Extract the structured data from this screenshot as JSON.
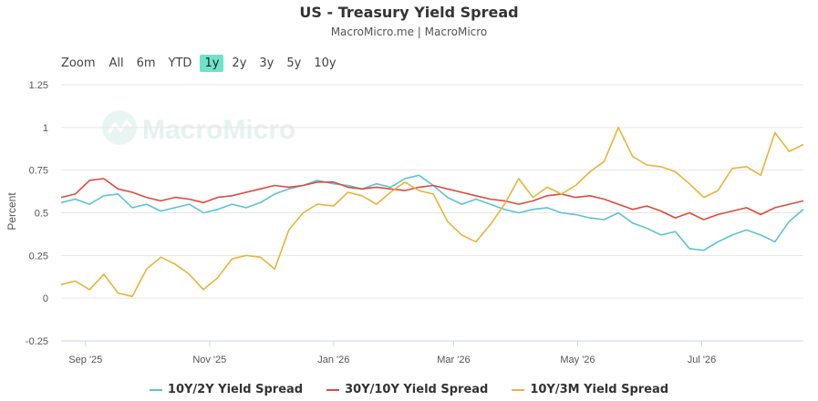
{
  "header": {
    "title": "US - Treasury Yield Spread",
    "subtitle": "MacroMicro.me | MacroMicro"
  },
  "range_selector": {
    "zoom_label": "Zoom",
    "buttons": [
      {
        "label": "All"
      },
      {
        "label": "6m"
      },
      {
        "label": "YTD"
      },
      {
        "label": "1y",
        "active": true
      },
      {
        "label": "2y"
      },
      {
        "label": "3y"
      },
      {
        "label": "5y"
      },
      {
        "label": "10y"
      }
    ],
    "active_color": "#6fe3c7"
  },
  "watermark": {
    "text": "MacroMicro"
  },
  "chart_data": {
    "type": "line",
    "ylabel": "Percent",
    "ylim": [
      -0.25,
      1.25
    ],
    "yticks": [
      "1.25",
      "1",
      "0.75",
      "0.5",
      "0.25",
      "0",
      "-0.25"
    ],
    "xlim": [
      "2025-08-20",
      "2026-08-20"
    ],
    "xticks": [
      {
        "label": "Sep '25",
        "date": "2025-09-01"
      },
      {
        "label": "Nov '25",
        "date": "2025-11-01"
      },
      {
        "label": "Jan '26",
        "date": "2026-01-01"
      },
      {
        "label": "Mar '26",
        "date": "2026-03-01"
      },
      {
        "label": "May '26",
        "date": "2026-05-01"
      },
      {
        "label": "Jul '26",
        "date": "2026-07-01"
      }
    ],
    "grid": true,
    "legend_position": "bottom",
    "series": [
      {
        "name": "10Y/2Y Yield Spread",
        "color": "#5bc4d1",
        "points": [
          [
            "2025-08-20",
            0.56
          ],
          [
            "2025-08-27",
            0.58
          ],
          [
            "2025-09-03",
            0.55
          ],
          [
            "2025-09-10",
            0.6
          ],
          [
            "2025-09-17",
            0.61
          ],
          [
            "2025-09-24",
            0.53
          ],
          [
            "2025-10-01",
            0.55
          ],
          [
            "2025-10-08",
            0.51
          ],
          [
            "2025-10-15",
            0.53
          ],
          [
            "2025-10-22",
            0.55
          ],
          [
            "2025-10-29",
            0.5
          ],
          [
            "2025-11-05",
            0.52
          ],
          [
            "2025-11-12",
            0.55
          ],
          [
            "2025-11-19",
            0.53
          ],
          [
            "2025-11-26",
            0.56
          ],
          [
            "2025-12-03",
            0.61
          ],
          [
            "2025-12-10",
            0.64
          ],
          [
            "2025-12-17",
            0.66
          ],
          [
            "2025-12-24",
            0.69
          ],
          [
            "2026-01-01",
            0.67
          ],
          [
            "2026-01-08",
            0.66
          ],
          [
            "2026-01-15",
            0.64
          ],
          [
            "2026-01-22",
            0.67
          ],
          [
            "2026-01-29",
            0.65
          ],
          [
            "2026-02-05",
            0.7
          ],
          [
            "2026-02-12",
            0.72
          ],
          [
            "2026-02-19",
            0.66
          ],
          [
            "2026-02-26",
            0.59
          ],
          [
            "2026-03-05",
            0.55
          ],
          [
            "2026-03-12",
            0.58
          ],
          [
            "2026-03-19",
            0.55
          ],
          [
            "2026-03-26",
            0.52
          ],
          [
            "2026-04-02",
            0.5
          ],
          [
            "2026-04-09",
            0.52
          ],
          [
            "2026-04-16",
            0.53
          ],
          [
            "2026-04-23",
            0.5
          ],
          [
            "2026-04-30",
            0.49
          ],
          [
            "2026-05-07",
            0.47
          ],
          [
            "2026-05-14",
            0.46
          ],
          [
            "2026-05-21",
            0.5
          ],
          [
            "2026-05-28",
            0.44
          ],
          [
            "2026-06-04",
            0.41
          ],
          [
            "2026-06-11",
            0.37
          ],
          [
            "2026-06-18",
            0.39
          ],
          [
            "2026-06-25",
            0.29
          ],
          [
            "2026-07-02",
            0.28
          ],
          [
            "2026-07-09",
            0.33
          ],
          [
            "2026-07-16",
            0.37
          ],
          [
            "2026-07-23",
            0.4
          ],
          [
            "2026-07-30",
            0.37
          ],
          [
            "2026-08-06",
            0.33
          ],
          [
            "2026-08-13",
            0.45
          ],
          [
            "2026-08-20",
            0.52
          ]
        ]
      },
      {
        "name": "30Y/10Y Yield Spread",
        "color": "#dd4b3c",
        "points": [
          [
            "2025-08-20",
            0.59
          ],
          [
            "2025-08-27",
            0.61
          ],
          [
            "2025-09-03",
            0.69
          ],
          [
            "2025-09-10",
            0.7
          ],
          [
            "2025-09-17",
            0.64
          ],
          [
            "2025-09-24",
            0.62
          ],
          [
            "2025-10-01",
            0.59
          ],
          [
            "2025-10-08",
            0.57
          ],
          [
            "2025-10-15",
            0.59
          ],
          [
            "2025-10-22",
            0.58
          ],
          [
            "2025-10-29",
            0.56
          ],
          [
            "2025-11-05",
            0.59
          ],
          [
            "2025-11-12",
            0.6
          ],
          [
            "2025-11-19",
            0.62
          ],
          [
            "2025-11-26",
            0.64
          ],
          [
            "2025-12-03",
            0.66
          ],
          [
            "2025-12-10",
            0.65
          ],
          [
            "2025-12-17",
            0.66
          ],
          [
            "2025-12-24",
            0.68
          ],
          [
            "2026-01-01",
            0.68
          ],
          [
            "2026-01-08",
            0.65
          ],
          [
            "2026-01-15",
            0.64
          ],
          [
            "2026-01-22",
            0.65
          ],
          [
            "2026-01-29",
            0.64
          ],
          [
            "2026-02-05",
            0.63
          ],
          [
            "2026-02-12",
            0.65
          ],
          [
            "2026-02-19",
            0.66
          ],
          [
            "2026-02-26",
            0.64
          ],
          [
            "2026-03-05",
            0.62
          ],
          [
            "2026-03-12",
            0.6
          ],
          [
            "2026-03-19",
            0.58
          ],
          [
            "2026-03-26",
            0.57
          ],
          [
            "2026-04-02",
            0.55
          ],
          [
            "2026-04-09",
            0.57
          ],
          [
            "2026-04-16",
            0.6
          ],
          [
            "2026-04-23",
            0.61
          ],
          [
            "2026-04-30",
            0.59
          ],
          [
            "2026-05-07",
            0.6
          ],
          [
            "2026-05-14",
            0.58
          ],
          [
            "2026-05-21",
            0.55
          ],
          [
            "2026-05-28",
            0.52
          ],
          [
            "2026-06-04",
            0.54
          ],
          [
            "2026-06-11",
            0.51
          ],
          [
            "2026-06-18",
            0.47
          ],
          [
            "2026-06-25",
            0.5
          ],
          [
            "2026-07-02",
            0.46
          ],
          [
            "2026-07-09",
            0.49
          ],
          [
            "2026-07-16",
            0.51
          ],
          [
            "2026-07-23",
            0.53
          ],
          [
            "2026-07-30",
            0.49
          ],
          [
            "2026-08-06",
            0.53
          ],
          [
            "2026-08-13",
            0.55
          ],
          [
            "2026-08-20",
            0.57
          ]
        ]
      },
      {
        "name": "10Y/3M Yield Spread",
        "color": "#e8b43a",
        "points": [
          [
            "2025-08-20",
            0.08
          ],
          [
            "2025-08-27",
            0.1
          ],
          [
            "2025-09-03",
            0.05
          ],
          [
            "2025-09-10",
            0.14
          ],
          [
            "2025-09-17",
            0.03
          ],
          [
            "2025-09-24",
            0.01
          ],
          [
            "2025-10-01",
            0.17
          ],
          [
            "2025-10-08",
            0.24
          ],
          [
            "2025-10-15",
            0.2
          ],
          [
            "2025-10-22",
            0.14
          ],
          [
            "2025-10-29",
            0.05
          ],
          [
            "2025-11-05",
            0.12
          ],
          [
            "2025-11-12",
            0.23
          ],
          [
            "2025-11-19",
            0.25
          ],
          [
            "2025-11-26",
            0.24
          ],
          [
            "2025-12-03",
            0.17
          ],
          [
            "2025-12-10",
            0.4
          ],
          [
            "2025-12-17",
            0.5
          ],
          [
            "2025-12-24",
            0.55
          ],
          [
            "2026-01-01",
            0.54
          ],
          [
            "2026-01-08",
            0.62
          ],
          [
            "2026-01-15",
            0.6
          ],
          [
            "2026-01-22",
            0.55
          ],
          [
            "2026-01-29",
            0.62
          ],
          [
            "2026-02-05",
            0.68
          ],
          [
            "2026-02-12",
            0.63
          ],
          [
            "2026-02-19",
            0.61
          ],
          [
            "2026-02-26",
            0.45
          ],
          [
            "2026-03-05",
            0.37
          ],
          [
            "2026-03-12",
            0.33
          ],
          [
            "2026-03-19",
            0.43
          ],
          [
            "2026-03-26",
            0.55
          ],
          [
            "2026-04-02",
            0.7
          ],
          [
            "2026-04-09",
            0.59
          ],
          [
            "2026-04-16",
            0.65
          ],
          [
            "2026-04-23",
            0.61
          ],
          [
            "2026-04-30",
            0.66
          ],
          [
            "2026-05-07",
            0.74
          ],
          [
            "2026-05-14",
            0.8
          ],
          [
            "2026-05-21",
            1.0
          ],
          [
            "2026-05-28",
            0.83
          ],
          [
            "2026-06-04",
            0.78
          ],
          [
            "2026-06-11",
            0.77
          ],
          [
            "2026-06-18",
            0.74
          ],
          [
            "2026-06-25",
            0.67
          ],
          [
            "2026-07-02",
            0.59
          ],
          [
            "2026-07-09",
            0.63
          ],
          [
            "2026-07-16",
            0.76
          ],
          [
            "2026-07-23",
            0.77
          ],
          [
            "2026-07-30",
            0.72
          ],
          [
            "2026-08-06",
            0.97
          ],
          [
            "2026-08-13",
            0.86
          ],
          [
            "2026-08-20",
            0.9
          ]
        ]
      }
    ]
  }
}
